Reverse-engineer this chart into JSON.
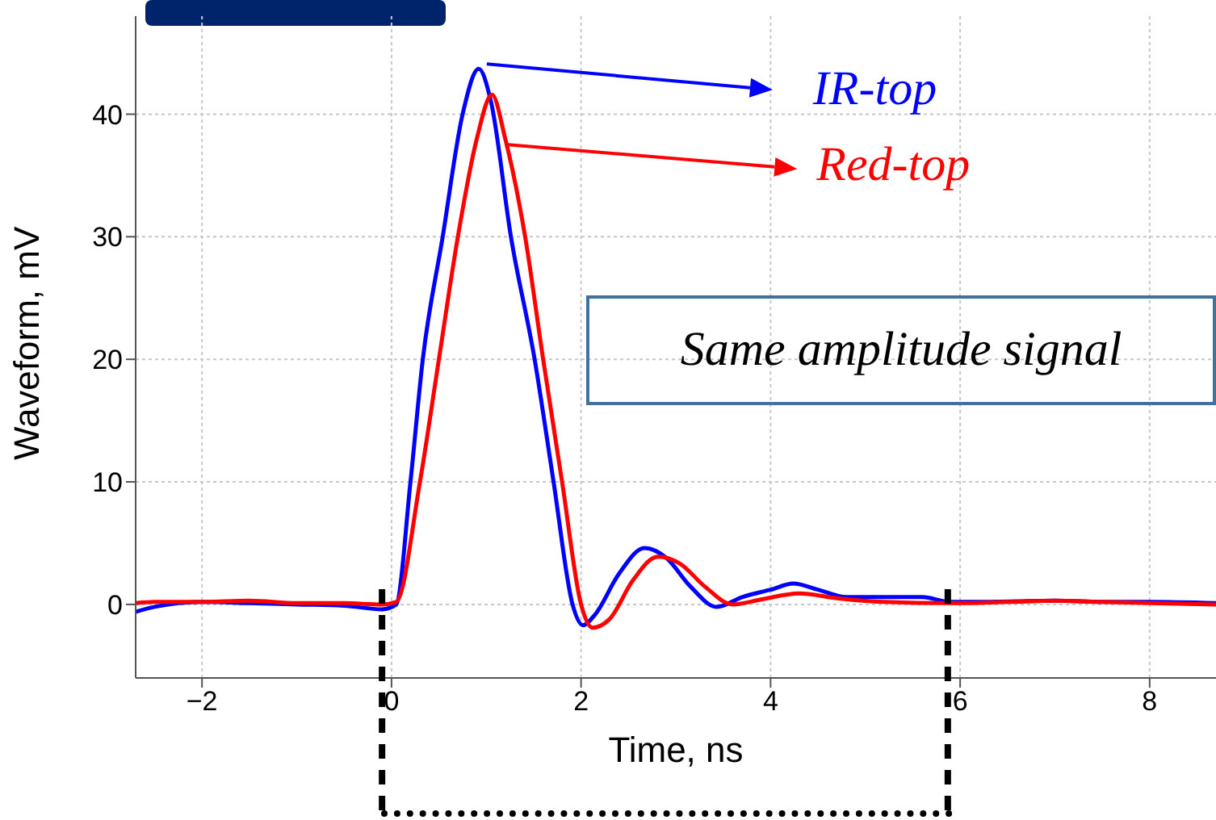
{
  "chart_data": {
    "type": "line",
    "xlabel": "Time, ns",
    "ylabel": "Waveform, mV",
    "xlim": [
      -2.7,
      8.7
    ],
    "ylim": [
      -6,
      48
    ],
    "xticks": [
      -2,
      0,
      2,
      4,
      6,
      8
    ],
    "yticks": [
      0,
      10,
      20,
      30,
      40
    ],
    "grid": true,
    "legend": "top right",
    "ref_lines": [
      {
        "axis": "x",
        "value": -0.1,
        "color": "#000000",
        "line_style": "dashed"
      },
      {
        "axis": "x",
        "value": 5.87,
        "color": "#000000",
        "line_style": "dashed"
      }
    ],
    "marker": "none",
    "line_style": "solid",
    "series": [
      {
        "name": "IR-top",
        "color": "#0000ff",
        "x": [
          -2.7,
          -2.5,
          -2.0,
          -1.5,
          -1.0,
          -0.5,
          -0.1,
          0.05,
          0.2,
          0.33,
          0.54,
          0.75,
          0.92,
          1.05,
          1.26,
          1.51,
          1.71,
          1.91,
          2.02,
          2.15,
          2.4,
          2.67,
          2.9,
          3.15,
          3.43,
          3.7,
          4.0,
          4.24,
          4.5,
          4.8,
          5.2,
          5.6,
          5.9,
          6.2,
          7.0,
          7.5,
          8.0,
          8.7
        ],
        "values": [
          -0.6,
          -0.2,
          0.2,
          0.1,
          0,
          -0.1,
          -0.4,
          0,
          10,
          20,
          30,
          40,
          43.7,
          41,
          30,
          20,
          10,
          0,
          -1.7,
          -0.8,
          2.5,
          4.6,
          3.8,
          1.5,
          -0.2,
          0.6,
          1.2,
          1.7,
          1.2,
          0.6,
          0.6,
          0.6,
          0.2,
          0.2,
          0.3,
          0.2,
          0.2,
          0.1
        ]
      },
      {
        "name": "Red-top",
        "color": "#ff0000",
        "x": [
          -2.7,
          -2.5,
          -2.0,
          -1.5,
          -1.0,
          -0.5,
          -0.1,
          0.05,
          0.3,
          0.5,
          0.7,
          0.9,
          1.06,
          1.2,
          1.41,
          1.6,
          1.8,
          2.0,
          2.12,
          2.3,
          2.55,
          2.81,
          3.05,
          3.3,
          3.6,
          3.9,
          4.3,
          4.7,
          5.2,
          5.9,
          6.5,
          7.0,
          7.5,
          8.0,
          8.7
        ],
        "values": [
          0.1,
          0.2,
          0.2,
          0.3,
          0.1,
          0.1,
          0,
          0.2,
          10,
          20,
          30,
          38,
          41.6,
          38,
          30,
          20,
          10,
          0,
          -1.9,
          -1.2,
          2,
          3.9,
          3.3,
          1.5,
          0,
          0.4,
          0.9,
          0.5,
          0.2,
          0.1,
          0.2,
          0.3,
          0.2,
          0.1,
          0
        ]
      }
    ],
    "annotations": [
      "Same amplitude signal"
    ]
  }
}
